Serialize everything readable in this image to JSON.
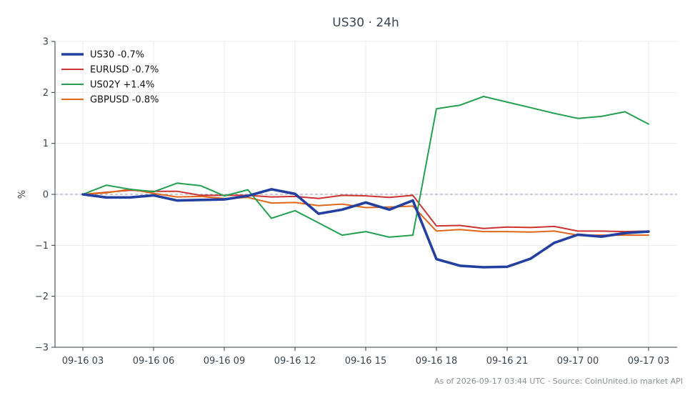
{
  "chart_data": {
    "type": "line",
    "title": "US30 · 24h",
    "xlabel": "",
    "ylabel": "%",
    "ylim": [
      -3,
      3
    ],
    "yticks": [
      "3",
      "2",
      "1",
      "0",
      "−1",
      "−2",
      "−3"
    ],
    "ytick_values": [
      3,
      2,
      1,
      0,
      -1,
      -2,
      -3
    ],
    "x": [
      "09-16 03:00",
      "09-16 04:00",
      "09-16 05:00",
      "09-16 06:00",
      "09-16 07:00",
      "09-16 08:00",
      "09-16 09:00",
      "09-16 10:00",
      "09-16 11:00",
      "09-16 12:00",
      "09-16 13:00",
      "09-16 14:00",
      "09-16 15:00",
      "09-16 16:00",
      "09-16 17:00",
      "09-16 18:00",
      "09-16 19:00",
      "09-16 20:00",
      "09-16 21:00",
      "09-16 22:00",
      "09-16 23:00",
      "09-17 00:00",
      "09-17 01:00",
      "09-17 02:00",
      "09-17 03:00"
    ],
    "xtick_labels": [
      "09-16 03",
      "09-16 06",
      "09-16 09",
      "09-16 12",
      "09-16 15",
      "09-16 18",
      "09-16 21",
      "09-17 00",
      "09-17 03"
    ],
    "xtick_positions": [
      0,
      3,
      6,
      9,
      12,
      15,
      18,
      21,
      24
    ],
    "grid": true,
    "zero_line": true,
    "legend_position": "top-left",
    "series": [
      {
        "name": "US30 -0.7%",
        "color": "#2340a0",
        "width": "thick",
        "values": [
          0.0,
          -0.06,
          -0.06,
          -0.02,
          -0.12,
          -0.11,
          -0.1,
          -0.03,
          0.1,
          0.01,
          -0.38,
          -0.3,
          -0.16,
          -0.3,
          -0.12,
          -1.27,
          -1.4,
          -1.43,
          -1.42,
          -1.26,
          -0.95,
          -0.79,
          -0.83,
          -0.76,
          -0.73
        ]
      },
      {
        "name": "EURUSD -0.7%",
        "color": "#cc3333",
        "width": "normal",
        "values": [
          0.0,
          0.04,
          0.08,
          0.06,
          0.06,
          -0.02,
          -0.02,
          -0.02,
          -0.05,
          -0.04,
          -0.08,
          -0.02,
          -0.03,
          -0.06,
          -0.02,
          -0.62,
          -0.61,
          -0.67,
          -0.64,
          -0.65,
          -0.63,
          -0.72,
          -0.72,
          -0.73,
          -0.72
        ]
      },
      {
        "name": "US02Y +1.4%",
        "color": "#22a050",
        "width": "normal",
        "values": [
          0.0,
          0.18,
          0.1,
          0.05,
          0.22,
          0.17,
          -0.03,
          0.09,
          -0.47,
          -0.32,
          -0.56,
          -0.8,
          -0.73,
          -0.84,
          -0.8,
          1.68,
          1.75,
          1.92,
          1.81,
          1.7,
          1.59,
          1.49,
          1.53,
          1.62,
          1.38
        ]
      },
      {
        "name": "GBPUSD -0.8%",
        "color": "#e0661a",
        "width": "normal",
        "values": [
          0.0,
          0.03,
          0.1,
          0.02,
          -0.05,
          -0.04,
          -0.08,
          -0.06,
          -0.17,
          -0.16,
          -0.22,
          -0.19,
          -0.26,
          -0.25,
          -0.23,
          -0.72,
          -0.69,
          -0.73,
          -0.73,
          -0.74,
          -0.72,
          -0.8,
          -0.8,
          -0.8,
          -0.8
        ]
      }
    ]
  },
  "footer": "As of 2026-09-17 03:44 UTC · Source: CoinUnited.io market API"
}
